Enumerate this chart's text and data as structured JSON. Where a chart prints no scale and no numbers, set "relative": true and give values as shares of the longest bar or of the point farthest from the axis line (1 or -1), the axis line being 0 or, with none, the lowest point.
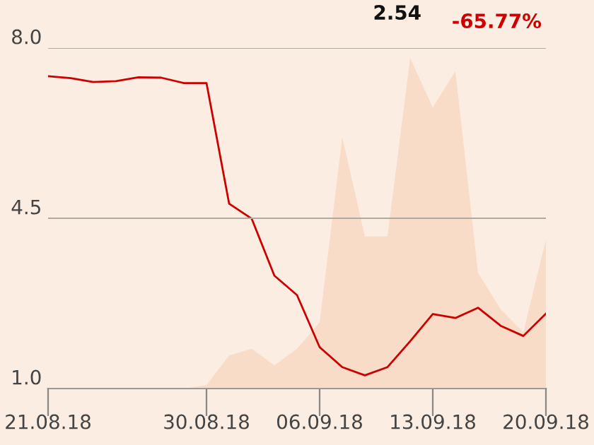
{
  "chart_data": [
    {
      "type": "line",
      "categories": [
        "21.08.18",
        null,
        null,
        null,
        null,
        null,
        null,
        "30.08.18",
        null,
        null,
        null,
        null,
        "06.09.18",
        null,
        null,
        null,
        null,
        "13.09.18",
        null,
        null,
        null,
        null,
        "20.09.18"
      ],
      "series": [
        {
          "color": "#cc0000",
          "values": [
            7.42,
            7.38,
            7.3,
            7.32,
            7.4,
            7.39,
            7.28,
            7.28,
            4.8,
            4.49,
            3.32,
            2.92,
            1.85,
            1.44,
            1.27,
            1.44,
            1.97,
            2.53,
            2.45,
            2.66,
            2.29,
            2.08,
            2.54
          ]
        }
      ],
      "ylim": [
        1.0,
        8.0
      ],
      "yticks": [
        {
          "value": 1.0,
          "label": "1.0"
        },
        {
          "value": 4.5,
          "label": "4.5"
        },
        {
          "value": 8.0,
          "label": "8.0"
        }
      ],
      "grid": "y",
      "tick_labels": "y",
      "annotations": [
        "2.54",
        "-65.77%"
      ]
    },
    {
      "type": "area",
      "relative": true,
      "categories": [
        "21.08.18",
        null,
        null,
        null,
        null,
        null,
        null,
        "30.08.18",
        null,
        null,
        null,
        null,
        "06.09.18",
        null,
        null,
        null,
        null,
        "13.09.18",
        null,
        null,
        null,
        null,
        "20.09.18"
      ],
      "series": [
        {
          "color": "#f8dcc7",
          "values": [
            0,
            0,
            0,
            0,
            0,
            0,
            0,
            0.01,
            0.1,
            0.12,
            0.07,
            0.12,
            0.2,
            0.76,
            0.46,
            0.46,
            1.0,
            0.85,
            0.96,
            0.35,
            0.24,
            0.17,
            0.45
          ]
        }
      ]
    }
  ]
}
